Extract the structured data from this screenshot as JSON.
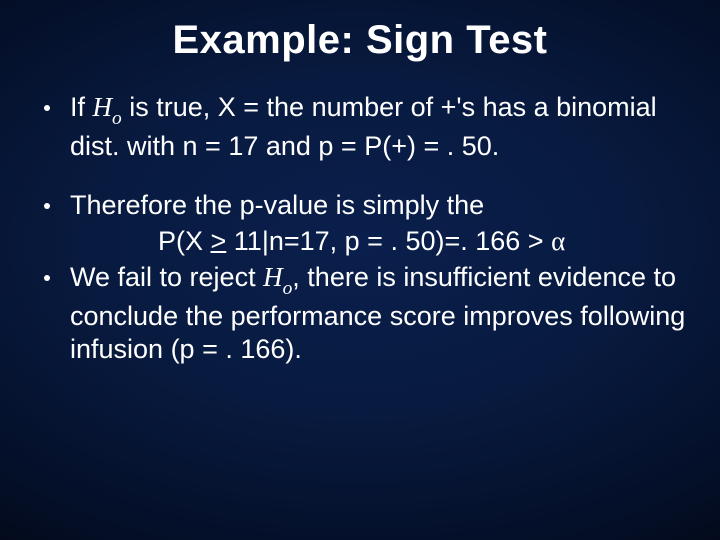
{
  "background": {
    "gradient_center": "#0a1f4d",
    "gradient_mid": "#081a3f",
    "gradient_outer": "#040f28",
    "gradient_edge": "#000000"
  },
  "title": {
    "text": "Example: Sign Test",
    "fontsize": 40,
    "color": "#ffffff",
    "weight": "bold"
  },
  "body": {
    "fontsize": 27,
    "color": "#ffffff",
    "bullet_color": "#ffffff"
  },
  "bullet1": {
    "pre": "If ",
    "hyp_sym": "H",
    "hyp_sub": "o",
    "post": " is true, X = the number of +'s has a binomial dist. with n = 17 and p = P(+) = . 50."
  },
  "bullet2": {
    "line1": "Therefore the p-value is simply the",
    "line2_pre": "P(X ",
    "line2_ge": ">",
    "line2_mid": " 11|n=17, p = . 50)=. 166 > ",
    "line2_alpha": "α"
  },
  "bullet3": {
    "pre": "We fail to reject ",
    "hyp_sym": "H",
    "hyp_sub": "o",
    "post": ", there is insufficient evidence to conclude the performance score improves following infusion (p = . 166)."
  }
}
